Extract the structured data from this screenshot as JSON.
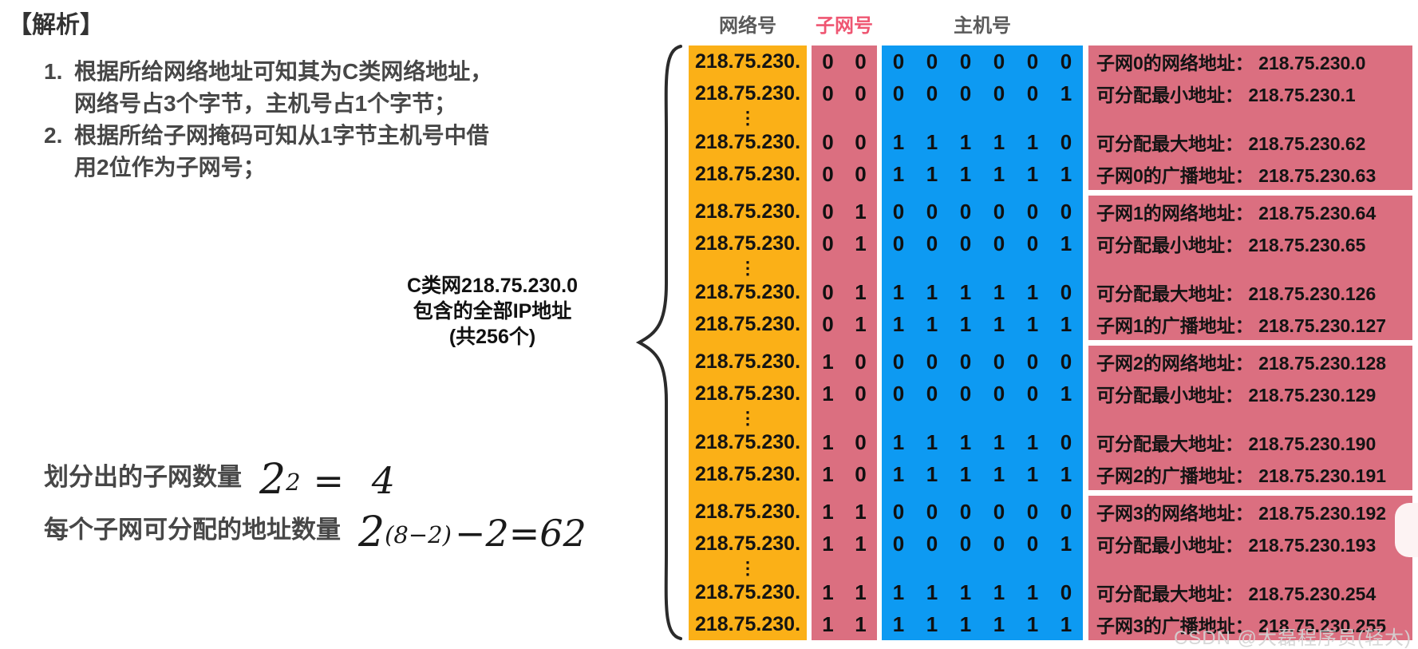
{
  "analysis": {
    "title": "【解析】",
    "points": [
      {
        "num": "1.",
        "line1": "根据所给网络地址可知其为C类网络地址，",
        "line2": "网络号占3个字节，主机号占1个字节；"
      },
      {
        "num": "2.",
        "line1": "根据所给子网掩码可知从1字节主机号中借",
        "line2": "用2位作为子网号；"
      }
    ]
  },
  "brace_label": {
    "line1": "C类网218.75.230.0",
    "line2": "包含的全部IP地址",
    "line3": "(共256个)"
  },
  "formulas": {
    "subnet_count": {
      "label": "划分出的子网数量",
      "base": "2",
      "exponent": "2",
      "tail": "= 4"
    },
    "address_count": {
      "label": "每个子网可分配的地址数量",
      "base": "2",
      "exponent": "(8−2)",
      "tail": "−2=62"
    }
  },
  "table": {
    "headers": {
      "network": "网络号",
      "subnet": "子网号",
      "host": "主机号"
    },
    "network_prefix": "218.75.230.",
    "ellipsis_glyph": "⋮",
    "groups": [
      {
        "subnet_bits": "00",
        "rows": [
          {
            "host_bits": "000000",
            "annotation": "子网0的网络地址： 218.75.230.0"
          },
          {
            "host_bits": "000001",
            "annotation": "可分配最小地址： 218.75.230.1"
          },
          {
            "host_bits": "111110",
            "annotation": "可分配最大地址： 218.75.230.62"
          },
          {
            "host_bits": "111111",
            "annotation": "子网0的广播地址： 218.75.230.63"
          }
        ]
      },
      {
        "subnet_bits": "01",
        "rows": [
          {
            "host_bits": "000000",
            "annotation": "子网1的网络地址： 218.75.230.64"
          },
          {
            "host_bits": "000001",
            "annotation": "可分配最小地址： 218.75.230.65"
          },
          {
            "host_bits": "111110",
            "annotation": "可分配最大地址： 218.75.230.126"
          },
          {
            "host_bits": "111111",
            "annotation": "子网1的广播地址： 218.75.230.127"
          }
        ]
      },
      {
        "subnet_bits": "10",
        "rows": [
          {
            "host_bits": "000000",
            "annotation": "子网2的网络地址： 218.75.230.128"
          },
          {
            "host_bits": "000001",
            "annotation": "可分配最小地址： 218.75.230.129"
          },
          {
            "host_bits": "111110",
            "annotation": "可分配最大地址： 218.75.230.190"
          },
          {
            "host_bits": "111111",
            "annotation": "子网2的广播地址： 218.75.230.191"
          }
        ]
      },
      {
        "subnet_bits": "11",
        "rows": [
          {
            "host_bits": "000000",
            "annotation": "子网3的网络地址： 218.75.230.192"
          },
          {
            "host_bits": "000001",
            "annotation": "可分配最小地址： 218.75.230.193"
          },
          {
            "host_bits": "111110",
            "annotation": "可分配最大地址： 218.75.230.254"
          },
          {
            "host_bits": "111111",
            "annotation": "子网3的广播地址： 218.75.230.255"
          }
        ]
      }
    ]
  },
  "colors": {
    "network_col": "#FBB017",
    "subnet_col": "#DB6F80",
    "host_col": "#0D9AF2",
    "annotation_col": "#DB6F80",
    "subnet_header_text": "#EF5672",
    "body_text": "#474747",
    "bit_text": "#101010"
  },
  "watermark": "CSDN @大磊程序员(轻大)"
}
